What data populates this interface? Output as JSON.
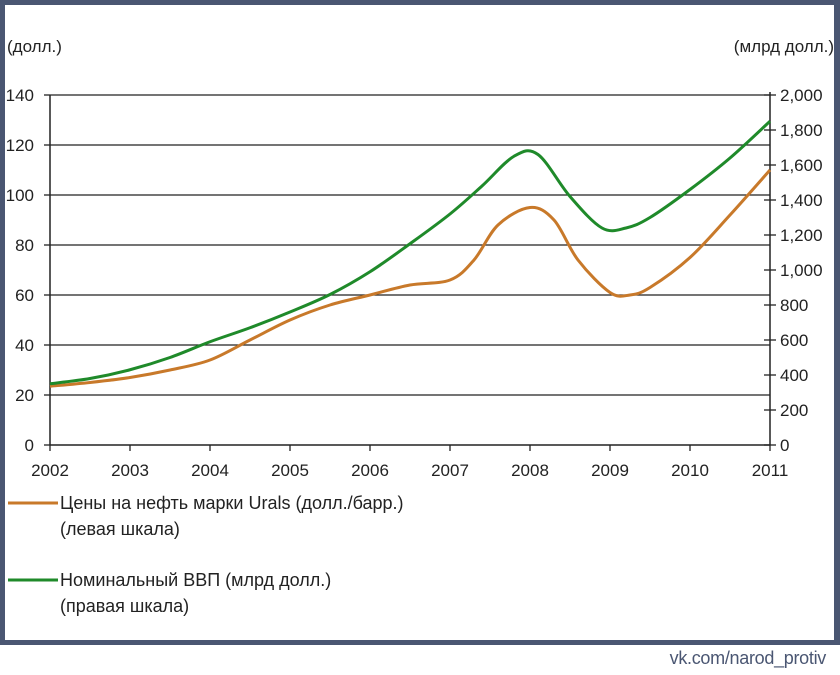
{
  "colors": {
    "frame": "#4a5672",
    "oil": "#c8792a",
    "gdp": "#1f8a2a",
    "grid": "#222222"
  },
  "watermark": "vk.com/narod_protiv",
  "chart_data": {
    "type": "line",
    "left_unit": "(долл.)",
    "right_unit": "(млрд долл.)",
    "xlim": [
      2002,
      2011
    ],
    "x_ticks": [
      "2002",
      "2003",
      "2004",
      "2005",
      "2006",
      "2007",
      "2008",
      "2009",
      "2010",
      "2011"
    ],
    "y_left_lim": [
      0,
      140
    ],
    "y_left_ticks": [
      "0",
      "20",
      "40",
      "60",
      "80",
      "100",
      "120",
      "140"
    ],
    "y_right_lim": [
      0,
      2000
    ],
    "y_right_ticks": [
      "0",
      "200",
      "400",
      "600",
      "800",
      "1,000",
      "1,200",
      "1,400",
      "1,600",
      "1,800",
      "2,000"
    ],
    "grid": true,
    "legend_position": "bottom-left",
    "series": [
      {
        "name": "Цены на нефть марки Urals (долл./барр.)",
        "name_line2": "(левая шкала)",
        "axis": "left",
        "x": [
          2002,
          2002.5,
          2003,
          2003.5,
          2004,
          2004.5,
          2005,
          2005.5,
          2006,
          2006.5,
          2007,
          2007.3,
          2007.6,
          2008,
          2008.3,
          2008.6,
          2009,
          2009.25,
          2009.5,
          2010,
          2010.5,
          2011
        ],
        "values": [
          23.5,
          25,
          27,
          30,
          34,
          42,
          50,
          56,
          60,
          64,
          66,
          74,
          88,
          95,
          90,
          74,
          61,
          60,
          63,
          75,
          92,
          110
        ]
      },
      {
        "name": "Номинальный ВВП (млрд долл.)",
        "name_line2": "(правая шкала)",
        "axis": "right",
        "x": [
          2002,
          2002.5,
          2003,
          2003.5,
          2004,
          2004.5,
          2005,
          2005.5,
          2006,
          2006.5,
          2007,
          2007.4,
          2007.8,
          2008.1,
          2008.5,
          2008.9,
          2009.2,
          2009.5,
          2010,
          2010.5,
          2011
        ],
        "values": [
          350,
          380,
          430,
          500,
          590,
          670,
          760,
          860,
          990,
          1150,
          1320,
          1480,
          1650,
          1660,
          1420,
          1240,
          1240,
          1300,
          1460,
          1640,
          1850
        ]
      }
    ]
  }
}
